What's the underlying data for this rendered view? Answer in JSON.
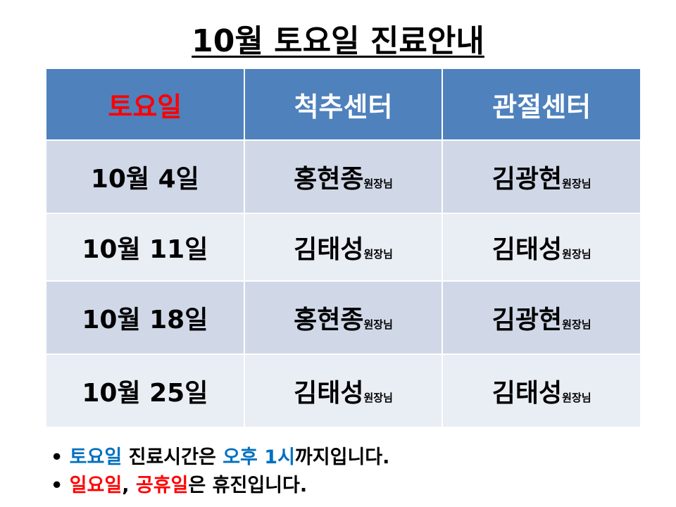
{
  "title": "10월 토요일 진료안내",
  "headers": [
    "토요일",
    "척추센터",
    "관절센터"
  ],
  "suffix": "원장님",
  "rows": [
    {
      "date": "10월 4일",
      "spine": "홍현종",
      "joint": "김광현"
    },
    {
      "date": "10월 11일",
      "spine": "김태성",
      "joint": "김태성"
    },
    {
      "date": "10월 18일",
      "spine": "홍현종",
      "joint": "김광현"
    },
    {
      "date": "10월 25일",
      "spine": "김태성",
      "joint": "김태성"
    }
  ],
  "notes": {
    "line1": {
      "bullet": "•",
      "a": "토요일",
      "b": " 진료시간은 ",
      "c": "오후 1시",
      "d": "까지입니다."
    },
    "line2": {
      "bullet": "•",
      "a": "일요일",
      "b": ", ",
      "c": "공휴일",
      "d": "은 휴진입니다."
    }
  },
  "colors": {
    "header_bg": "#4F81BD",
    "row_dark": "#D0D8E8",
    "row_light": "#E9EDF4",
    "red": "#FF0000",
    "blue": "#0070C0"
  }
}
